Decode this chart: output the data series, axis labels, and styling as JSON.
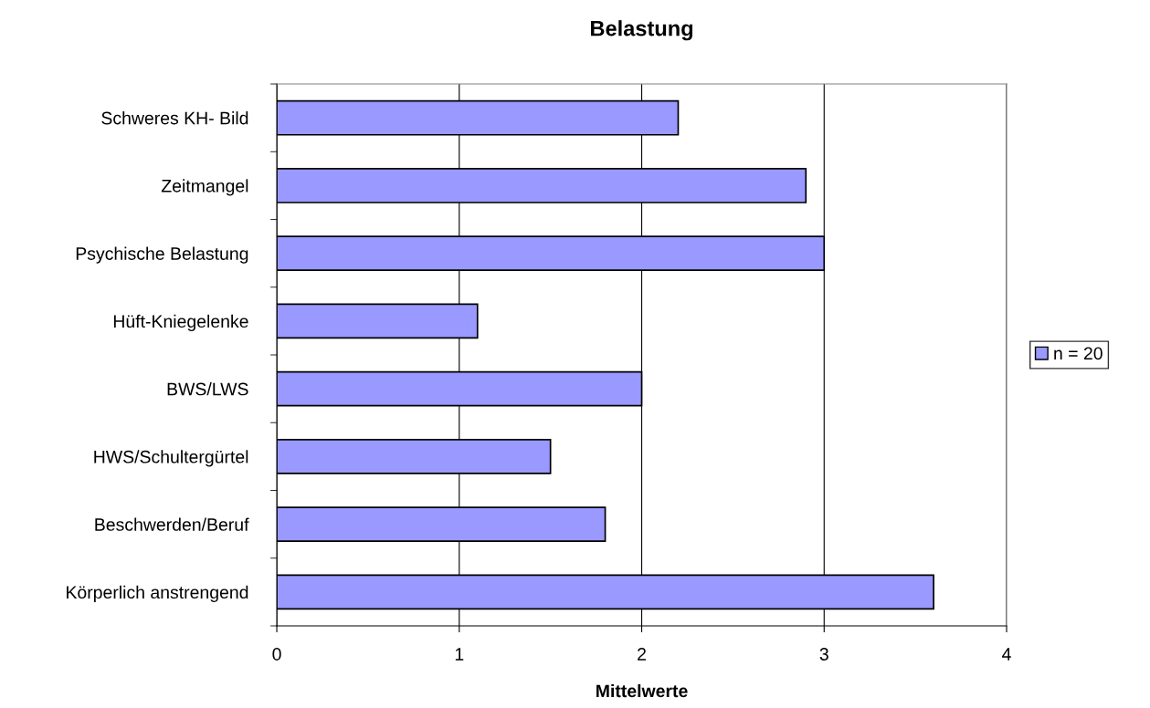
{
  "chart_data": {
    "type": "bar",
    "orientation": "horizontal",
    "title": "Belastung",
    "xlabel": "Mittelwerte",
    "categories": [
      "Schweres KH- Bild",
      "Zeitmangel",
      "Psychische Belastung",
      "Hüft-Kniegelenke",
      "BWS/LWS",
      "HWS/Schultergürtel",
      "Beschwerden/Beruf",
      "Körperlich anstrengend"
    ],
    "series": [
      {
        "name": "n = 20",
        "color": "#9999ff",
        "values": [
          2.2,
          2.9,
          3.0,
          1.1,
          2.0,
          1.5,
          1.8,
          3.6
        ]
      }
    ],
    "xlim": [
      0,
      4
    ],
    "xticks": [
      0,
      1,
      2,
      3,
      4
    ],
    "grid": "x",
    "legend": "right"
  }
}
